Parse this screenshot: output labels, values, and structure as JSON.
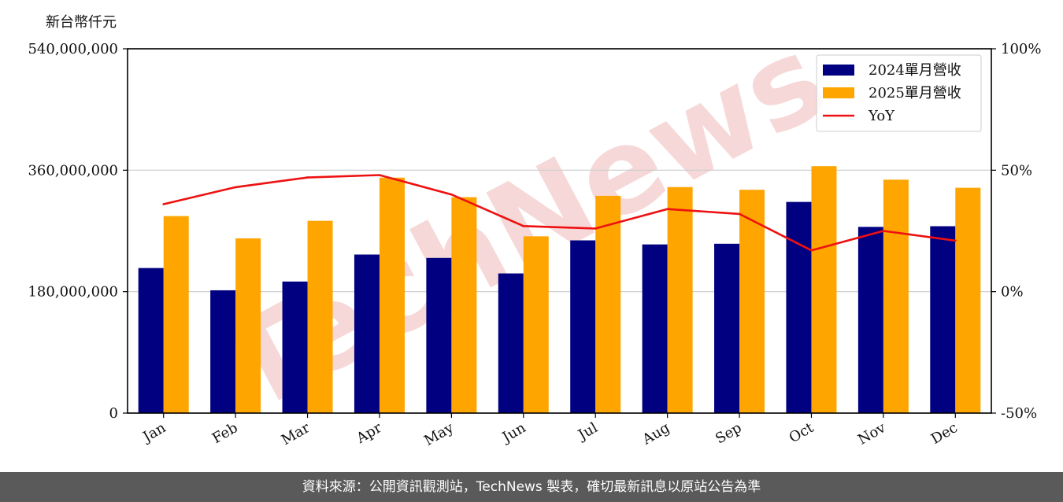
{
  "unit_label": "新台幣仟元",
  "footer_text": "資料來源：公開資訊觀測站，TechNews 製表，確切最新訊息以原站公告為準",
  "watermark_text": "TechNews",
  "colors": {
    "series_2024": "#000080",
    "series_2025": "#ffa500",
    "yoy_line": "#ee1111",
    "footer_bg": "#5a5a5a",
    "watermark": "#f0b8b8"
  },
  "chart_data": {
    "type": "bar",
    "categories": [
      "Jan",
      "Feb",
      "Mar",
      "Apr",
      "May",
      "Jun",
      "Jul",
      "Aug",
      "Sep",
      "Oct",
      "Nov",
      "Dec"
    ],
    "series": [
      {
        "name": "2024單月營收",
        "type": "bar",
        "axis": "left",
        "values": [
          215000000,
          182000000,
          195000000,
          235000000,
          230000000,
          207000000,
          256000000,
          250000000,
          251000000,
          313000000,
          276000000,
          277000000
        ]
      },
      {
        "name": "2025單月營收",
        "type": "bar",
        "axis": "left",
        "values": [
          292000000,
          259000000,
          285000000,
          349000000,
          320000000,
          262000000,
          322000000,
          335000000,
          331000000,
          366000000,
          346000000,
          334000000
        ]
      },
      {
        "name": "YoY",
        "type": "line",
        "axis": "right",
        "values": [
          36,
          43,
          47,
          48,
          40,
          27,
          26,
          34,
          32,
          17,
          25,
          21
        ]
      }
    ],
    "ylim": [
      0,
      540000000
    ],
    "yticks": [
      "0",
      "180,000,000",
      "360,000,000",
      "540,000,000"
    ],
    "ytick_values": [
      0,
      180000000,
      360000000,
      540000000
    ],
    "y2lim": [
      -50,
      100
    ],
    "y2ticks": [
      "-50%",
      "0%",
      "50%",
      "100%"
    ],
    "y2tick_values": [
      -50,
      0,
      50,
      100
    ],
    "grid": true,
    "legend_position": "top-right"
  }
}
